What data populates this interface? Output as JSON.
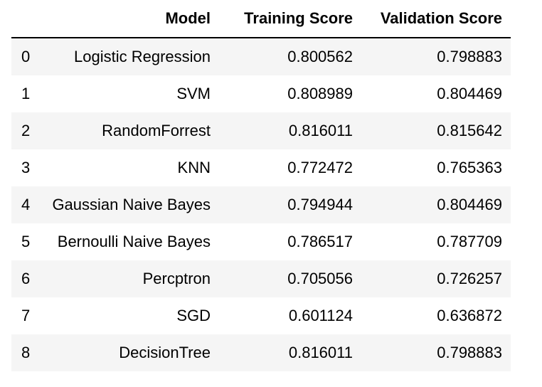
{
  "table": {
    "columns": [
      "",
      "Model",
      "Training Score",
      "Validation Score"
    ],
    "rows": [
      {
        "index": "0",
        "model": "Logistic Regression",
        "training": "0.800562",
        "validation": "0.798883"
      },
      {
        "index": "1",
        "model": "SVM",
        "training": "0.808989",
        "validation": "0.804469"
      },
      {
        "index": "2",
        "model": "RandomForrest",
        "training": "0.816011",
        "validation": "0.815642"
      },
      {
        "index": "3",
        "model": "KNN",
        "training": "0.772472",
        "validation": "0.765363"
      },
      {
        "index": "4",
        "model": "Gaussian Naive Bayes",
        "training": "0.794944",
        "validation": "0.804469"
      },
      {
        "index": "5",
        "model": "Bernoulli Naive Bayes",
        "training": "0.786517",
        "validation": "0.787709"
      },
      {
        "index": "6",
        "model": "Percptron",
        "training": "0.705056",
        "validation": "0.726257"
      },
      {
        "index": "7",
        "model": "SGD",
        "training": "0.601124",
        "validation": "0.636872"
      },
      {
        "index": "8",
        "model": "DecisionTree",
        "training": "0.816011",
        "validation": "0.798883"
      }
    ]
  }
}
